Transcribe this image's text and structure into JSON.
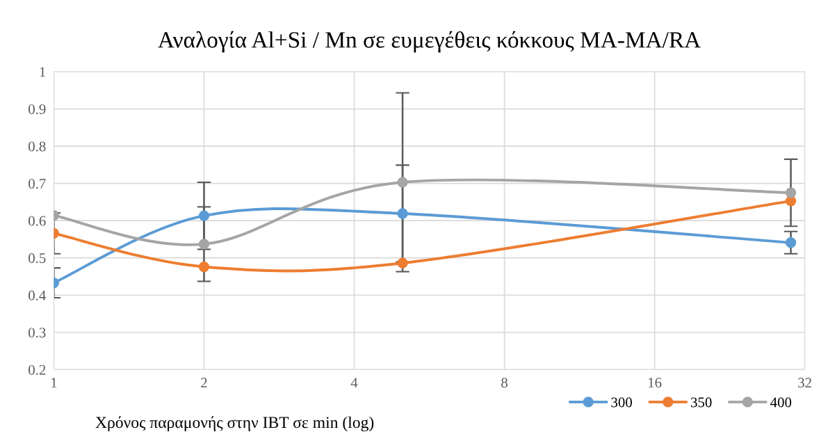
{
  "chart_data": {
    "type": "line",
    "title": "Αναλογία Al+Si / Mn σε ευμεγέθεις κόκκους MA-MA/RA",
    "xlabel": "Χρόνος παραμονής στην IBT σε min (log)",
    "x": [
      1,
      2,
      5,
      30
    ],
    "series": [
      {
        "name": "300",
        "color": "#5b9bd5",
        "values": [
          0.433,
          0.613,
          0.619,
          0.541
        ],
        "errors": [
          0.04,
          0.09,
          0.13,
          0.03
        ]
      },
      {
        "name": "350",
        "color": "#ed7d31",
        "values": [
          0.566,
          0.476,
          0.486,
          0.653
        ],
        "errors": [
          0.055,
          null,
          null,
          null
        ]
      },
      {
        "name": "400",
        "color": "#a5a5a5",
        "values": [
          0.614,
          0.537,
          0.703,
          0.675
        ],
        "errors": [
          null,
          0.1,
          0.24,
          0.09
        ]
      }
    ],
    "log": "x",
    "xlim": [
      1,
      32
    ],
    "xticks": [
      1,
      2,
      4,
      8,
      16,
      32
    ],
    "ylim": [
      0.2,
      1
    ],
    "yticks": [
      0.2,
      0.3,
      0.4,
      0.5,
      0.6,
      0.7,
      0.8,
      0.9,
      1
    ],
    "grid": true,
    "legend": "bottom right",
    "marker": "circle",
    "line_style": "solid"
  }
}
